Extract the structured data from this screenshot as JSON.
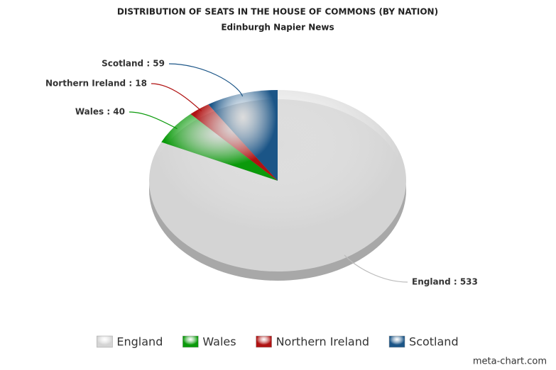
{
  "chart_data": {
    "type": "pie",
    "title": "DISTRIBUTION OF SEATS IN THE HOUSE OF COMMONS (BY NATION)",
    "subtitle": "Edinburgh Napier News",
    "categories": [
      "England",
      "Wales",
      "Northern Ireland",
      "Scotland"
    ],
    "values": [
      533,
      40,
      18,
      59
    ],
    "value_labels": [
      "England : 533",
      "Wales : 40",
      "Northern Ireland : 18",
      "Scotland : 59"
    ],
    "colors": [
      "#d4d4d4",
      "#0b9a0b",
      "#b01212",
      "#1b5587"
    ],
    "legend": "bottom"
  },
  "credit": "meta-chart.com"
}
